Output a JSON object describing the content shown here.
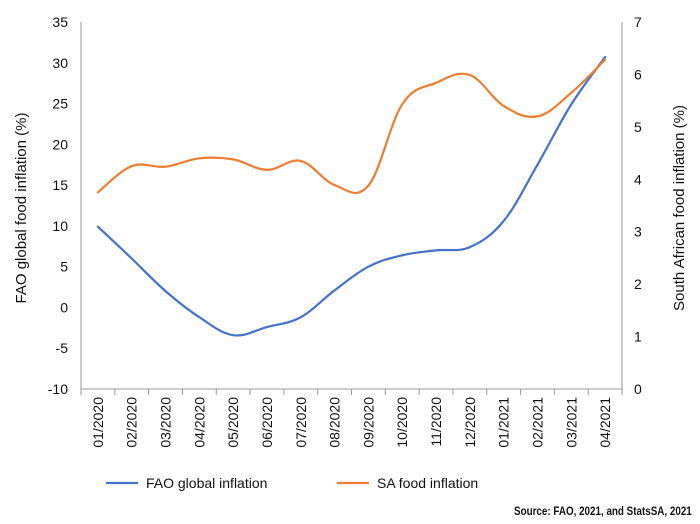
{
  "chart_data": {
    "type": "line",
    "categories": [
      "01/2020",
      "02/2020",
      "03/2020",
      "04/2020",
      "05/2020",
      "06/2020",
      "07/2020",
      "08/2020",
      "09/2020",
      "10/2020",
      "11/2020",
      "12/2020",
      "01/2021",
      "02/2021",
      "03/2021",
      "04/2021"
    ],
    "series": [
      {
        "name": "FAO global inflation",
        "axis": "left",
        "color": "#4472c4",
        "values": [
          9.9,
          6.0,
          2.0,
          -1.2,
          -3.4,
          -2.4,
          -1.2,
          2.1,
          5.0,
          6.4,
          7.0,
          7.4,
          10.6,
          17.5,
          24.9,
          30.7
        ]
      },
      {
        "name": "SA food inflation",
        "axis": "right",
        "color": "#ed7d31",
        "values": [
          3.75,
          4.25,
          4.24,
          4.4,
          4.38,
          4.18,
          4.35,
          3.89,
          3.88,
          5.43,
          5.84,
          5.99,
          5.4,
          5.2,
          5.65,
          6.28
        ]
      }
    ],
    "ylabel_left": "FAO global food inflation (%)",
    "ylabel_right": "South African food inflation (%)",
    "ylim_left": [
      -10,
      35
    ],
    "yticks_left": [
      "35",
      "30",
      "25",
      "20",
      "15",
      "10",
      "5",
      "0",
      "-5",
      "-10"
    ],
    "ylim_right": [
      0,
      7
    ],
    "yticks_right": [
      "7",
      "6",
      "5",
      "4",
      "3",
      "2",
      "1",
      "0"
    ],
    "grid": false,
    "legend_position": "bottom"
  },
  "source": "Source: FAO, 2021, and StatsSA, 2021"
}
